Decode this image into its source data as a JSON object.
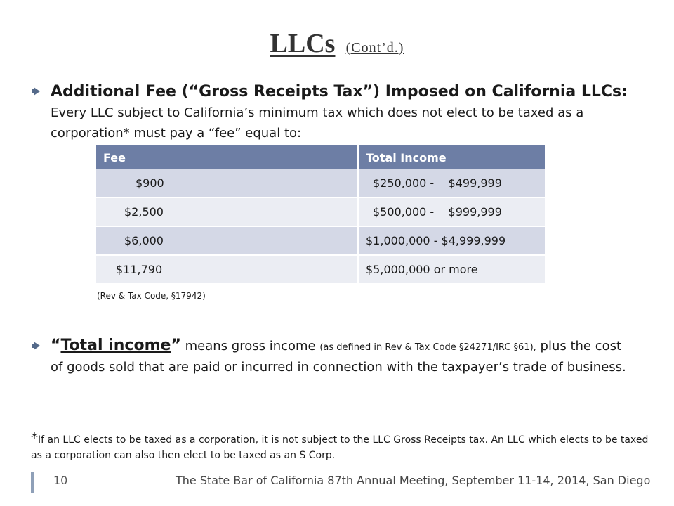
{
  "slide": {
    "title": "LLCs",
    "subtitle": "(Cont’d.)"
  },
  "bullet1": {
    "lead": "Additional Fee (“Gross Receipts Tax”) Imposed on California LLCs:",
    "body": " Every LLC subject to California’s minimum tax which does not elect to be taxed as a corporation* must pay a “fee” equal to:"
  },
  "fee_table": {
    "headers": [
      "Fee",
      "Total Income"
    ],
    "rows": [
      {
        "fee": "$900",
        "income": "$250,000 -    $499,999"
      },
      {
        "fee": "$2,500",
        "income": "$500,000 -    $999,999"
      },
      {
        "fee": "$6,000",
        "income": "$1,000,000 - $4,999,999"
      },
      {
        "fee": "$11,790",
        "income": "$5,000,000 or more"
      }
    ]
  },
  "citation": "(Rev & Tax Code, §17942)",
  "bullet2": {
    "quote_open": "“",
    "term": "Total income",
    "quote_close": "”",
    "text_a": " means gross income ",
    "paren": "(as defined in Rev & Tax Code §24271/IRC §61),",
    "plus": "plus",
    "text_b": " the cost of goods sold that are paid or incurred in connection with the taxpayer’s trade of business."
  },
  "footnote": {
    "star": "*",
    "text": "If an LLC elects to be taxed as a corporation, it is not subject to the LLC Gross Receipts tax. An LLC which elects to be taxed as a corporation can also then elect to be taxed as an S Corp."
  },
  "footer": {
    "page_number": "10",
    "text": "The State Bar of California 87th Annual Meeting, September 11-14, 2014, San Diego"
  },
  "colors": {
    "table_header": "#6d7ea5",
    "row_odd": "#d4d8e6",
    "row_even": "#ebedf3",
    "bullet_arrow": "#556a8a"
  }
}
